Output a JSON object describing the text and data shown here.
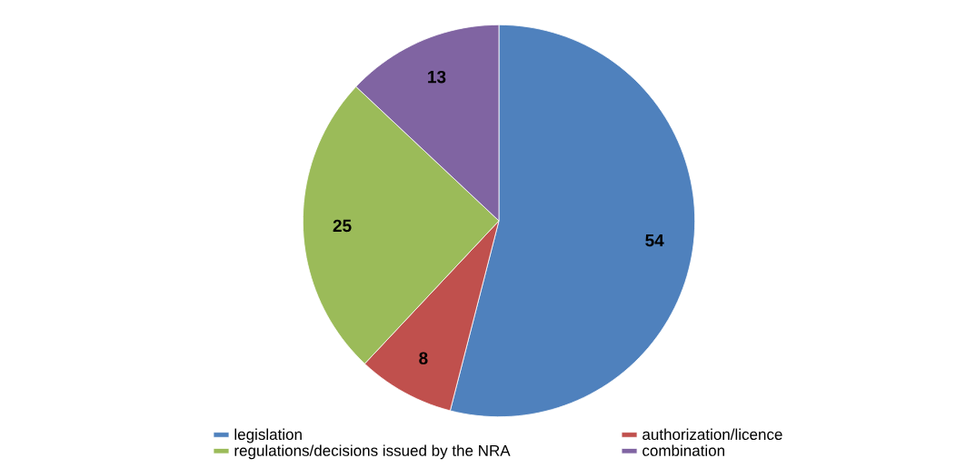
{
  "chart_data": {
    "type": "pie",
    "categories": [
      "legislation",
      "authorization/licence",
      "regulations/decisions issued by the NRA",
      "combination"
    ],
    "values": [
      54,
      8,
      25,
      13
    ],
    "colors": [
      "#4f81bd",
      "#c0504d",
      "#9bbb59",
      "#8064a2"
    ],
    "data_labels": true,
    "legend": "bottom"
  }
}
